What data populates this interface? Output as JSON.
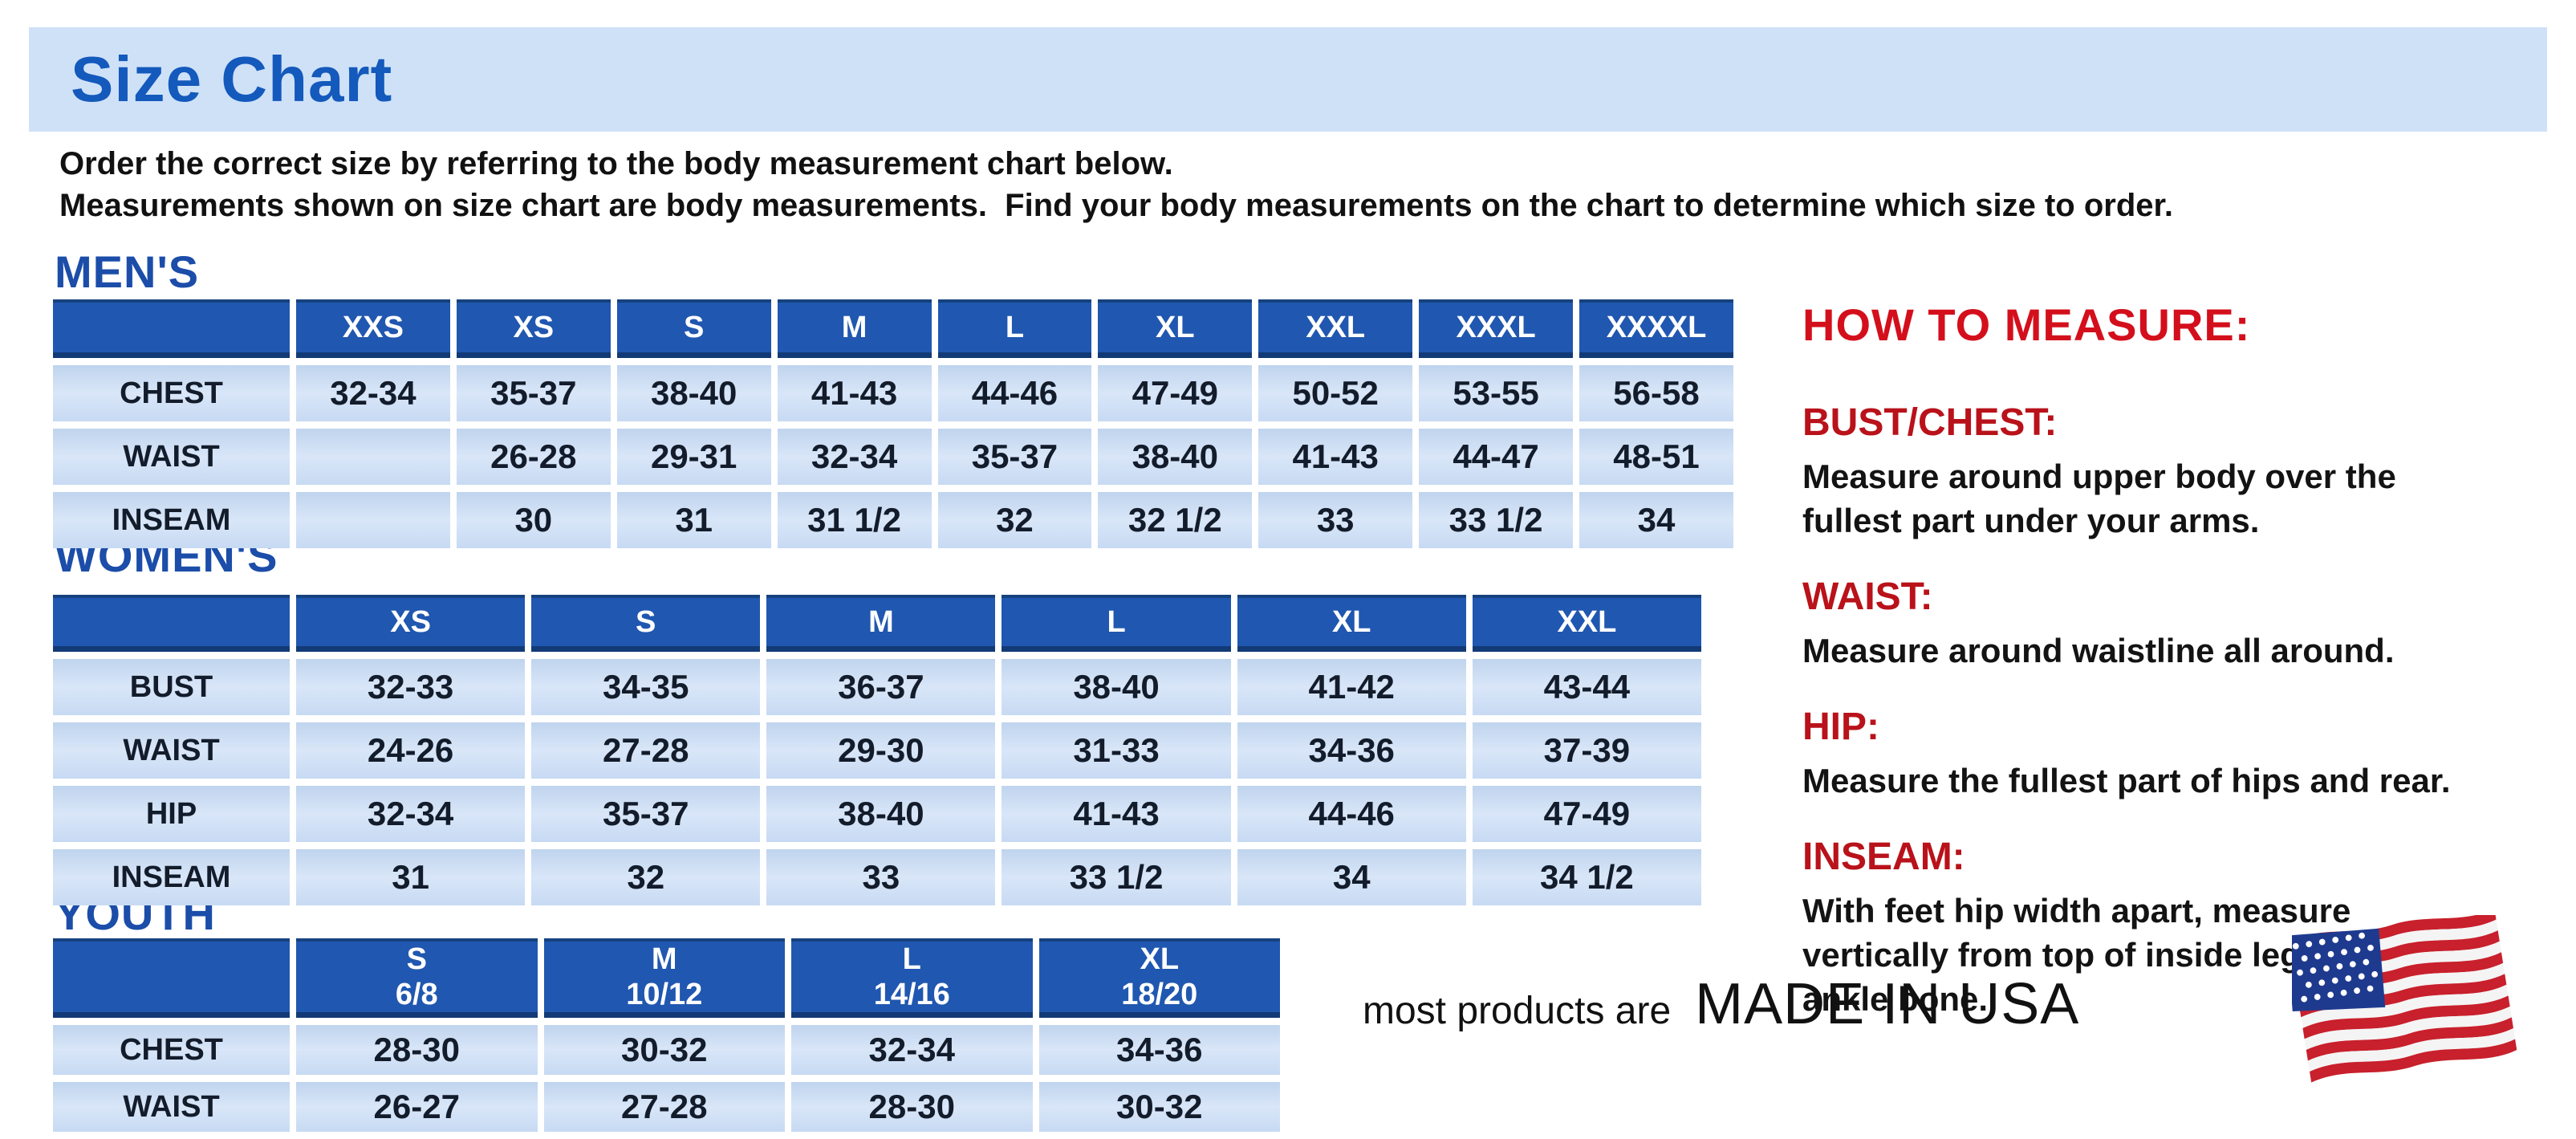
{
  "page": {
    "title": "Size Chart",
    "intro_line1": "Order the correct size by referring to the body measurement chart below.",
    "intro_line2": "Measurements shown on size chart are body measurements.  Find your body measurements on the chart to determine which size to order."
  },
  "colors": {
    "banner_bg": "#cfe1f7",
    "title_blue": "#1459bc",
    "heading_blue": "#1b4da9",
    "table_header_blue": "#2057b0",
    "cell_blue": "#c9dcf3",
    "accent_red": "#d40f1c",
    "sub_red": "#b9121a"
  },
  "tables": [
    {
      "id": "mens",
      "heading": "MEN'S",
      "columns": [
        "",
        "XXS",
        "XS",
        "S",
        "M",
        "L",
        "XL",
        "XXL",
        "XXXL",
        "XXXXL"
      ],
      "rows": [
        {
          "label": "CHEST",
          "values": [
            "32-34",
            "35-37",
            "38-40",
            "41-43",
            "44-46",
            "47-49",
            "50-52",
            "53-55",
            "56-58"
          ]
        },
        {
          "label": "WAIST",
          "values": [
            "",
            "26-28",
            "29-31",
            "32-34",
            "35-37",
            "38-40",
            "41-43",
            "44-47",
            "48-51"
          ]
        },
        {
          "label": "INSEAM",
          "values": [
            "",
            "30",
            "31",
            "31 1/2",
            "32",
            "32 1/2",
            "33",
            "33 1/2",
            "34"
          ]
        }
      ]
    },
    {
      "id": "womens",
      "heading": "WOMEN'S",
      "columns": [
        "",
        "XS",
        "S",
        "M",
        "L",
        "XL",
        "XXL"
      ],
      "rows": [
        {
          "label": "BUST",
          "values": [
            "32-33",
            "34-35",
            "36-37",
            "38-40",
            "41-42",
            "43-44"
          ]
        },
        {
          "label": "WAIST",
          "values": [
            "24-26",
            "27-28",
            "29-30",
            "31-33",
            "34-36",
            "37-39"
          ]
        },
        {
          "label": "HIP",
          "values": [
            "32-34",
            "35-37",
            "38-40",
            "41-43",
            "44-46",
            "47-49"
          ]
        },
        {
          "label": "INSEAM",
          "values": [
            "31",
            "32",
            "33",
            "33 1/2",
            "34",
            "34 1/2"
          ]
        }
      ]
    },
    {
      "id": "youth",
      "heading": "YOUTH",
      "columns": [
        "",
        "S\n6/8",
        "M\n10/12",
        "L\n14/16",
        "XL\n18/20"
      ],
      "rows": [
        {
          "label": "CHEST",
          "values": [
            "28-30",
            "30-32",
            "32-34",
            "34-36"
          ]
        },
        {
          "label": "WAIST",
          "values": [
            "26-27",
            "27-28",
            "28-30",
            "30-32"
          ]
        }
      ]
    }
  ],
  "how_to_measure": {
    "heading": "HOW TO MEASURE:",
    "items": [
      {
        "label": "BUST/CHEST:",
        "text": "Measure around upper body over the\nfullest part under your arms."
      },
      {
        "label": "WAIST:",
        "text": "Measure around waistline all around."
      },
      {
        "label": "HIP:",
        "text": "Measure the fullest part of hips and rear."
      },
      {
        "label": "INSEAM:",
        "text": "With feet hip width apart, measure\nvertically from top of inside leg to\nankle bone."
      }
    ]
  },
  "footer": {
    "prefix": "most products are",
    "made_in": "MADE IN USA"
  }
}
